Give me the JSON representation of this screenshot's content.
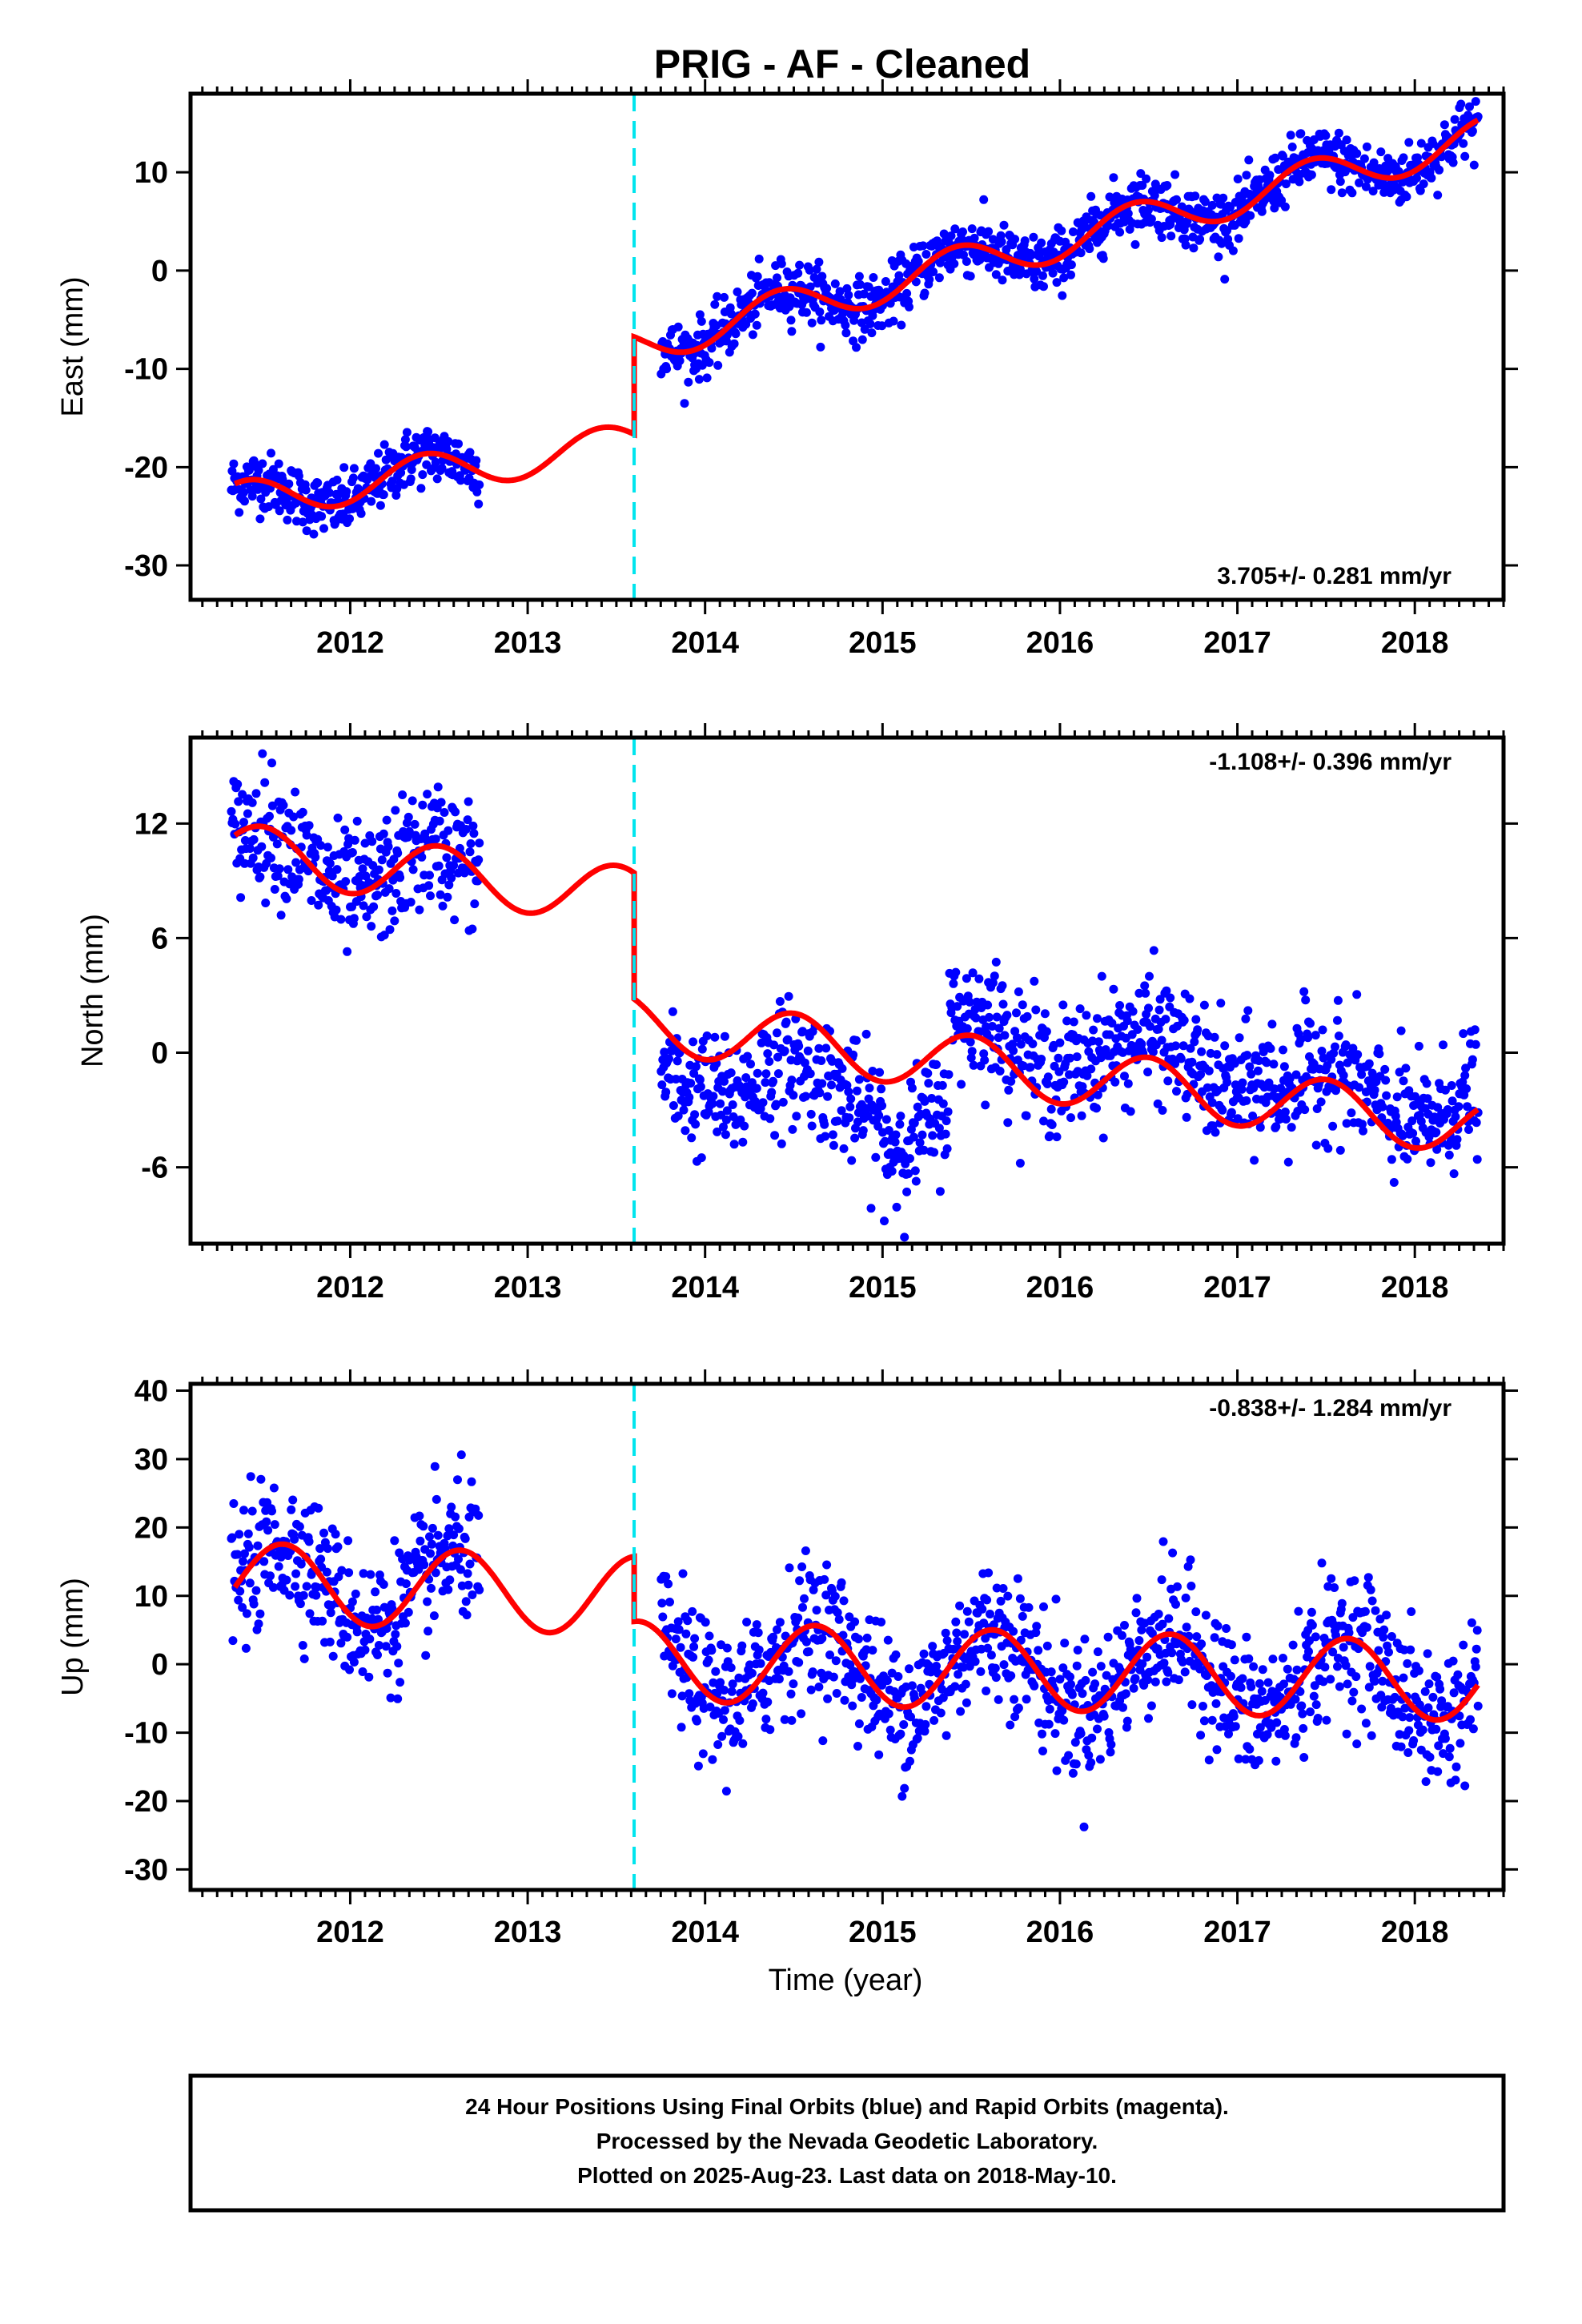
{
  "title": "PRIG  - AF - Cleaned",
  "colors": {
    "points": "#0000ff",
    "model": "#ff0000",
    "offset_line": "#00e5ee",
    "frame": "#000000"
  },
  "x_axis": {
    "label": "Time (year)",
    "range": [
      2011.1,
      2018.5
    ],
    "ticks": [
      2012,
      2013,
      2014,
      2015,
      2016,
      2017,
      2018
    ],
    "tick_labels": [
      "2012",
      "2013",
      "2014",
      "2015",
      "2016",
      "2017",
      "2018"
    ],
    "data_start": 2011.33,
    "data_gap": [
      2012.73,
      2013.75
    ],
    "data_end": 2018.36,
    "offset_epoch": 2013.6
  },
  "chart_data": [
    {
      "type": "scatter",
      "component": "east",
      "ylabel": "East (mm)",
      "ylim": [
        -33.5,
        18
      ],
      "yticks": [
        10,
        0,
        -10,
        -20,
        -30
      ],
      "ytick_labels": [
        "10",
        "0",
        "-10",
        "-20",
        "-30"
      ],
      "rate_label": "3.705+/- 0.281 mm/yr",
      "rate_position": "bottom-right",
      "model": {
        "trend_before": [
          [
            2011.35,
            -23.5
          ],
          [
            2013.6,
            -17.5
          ]
        ],
        "trend_after": [
          [
            2013.6,
            -7.6
          ],
          [
            2018.36,
            13.5
          ]
        ],
        "seasonal_amplitude": 2.0,
        "seasonal_peak_phase": 0.42
      },
      "scatter_noise_mm": 1.5
    },
    {
      "type": "scatter",
      "component": "north",
      "ylabel": "North (mm)",
      "ylim": [
        -10,
        16.5
      ],
      "yticks": [
        12,
        6,
        0,
        -6
      ],
      "ytick_labels": [
        "12",
        "6",
        "0",
        "-6"
      ],
      "rate_label": "-1.108+/- 0.396 mm/yr",
      "rate_position": "top-right",
      "model": {
        "trend_before": [
          [
            2011.35,
            10.5
          ],
          [
            2013.6,
            8.2
          ]
        ],
        "trend_after": [
          [
            2013.6,
            1.6
          ],
          [
            2018.36,
            -3.9
          ]
        ],
        "seasonal_amplitude": 1.5,
        "seasonal_peak_phase": 0.5
      },
      "data_shift_segments": [
        {
          "from": 2013.75,
          "to": 2014.1,
          "value": -1.8
        },
        {
          "from": 2014.1,
          "to": 2015.0,
          "value": -3.2
        },
        {
          "from": 2015.0,
          "to": 2015.37,
          "value": -5.5
        },
        {
          "from": 2015.37,
          "to": 2016.3,
          "value": 1.2
        },
        {
          "from": 2016.3,
          "to": 2017.2,
          "value": 0.3
        },
        {
          "from": 2017.2,
          "to": 2018.36,
          "value": -1.8
        }
      ],
      "scatter_noise_mm": 1.6
    },
    {
      "type": "scatter",
      "component": "up",
      "ylabel": "Up (mm)",
      "ylim": [
        -33,
        41
      ],
      "yticks": [
        40,
        30,
        20,
        10,
        0,
        -10,
        -20,
        -30
      ],
      "ytick_labels": [
        "40",
        "30",
        "20",
        "10",
        "0",
        "-10",
        "-20",
        "-30"
      ],
      "rate_label": "-0.838+/- 1.284 mm/yr",
      "rate_position": "top-right",
      "model": {
        "trend_before": [
          [
            2011.35,
            12.0
          ],
          [
            2013.6,
            10.0
          ]
        ],
        "trend_after": [
          [
            2013.6,
            0.5
          ],
          [
            2018.36,
            -2.5
          ]
        ],
        "seasonal_amplitude": 5.8,
        "seasonal_peak_phase": 0.62
      },
      "scatter_noise_mm": 5.0
    }
  ],
  "footer": {
    "line1": "24 Hour Positions Using Final Orbits (blue) and Rapid Orbits (magenta).",
    "line2": "Processed by the Nevada Geodetic Laboratory.",
    "line3": "Plotted on 2025-Aug-23. Last data on 2018-May-10."
  }
}
